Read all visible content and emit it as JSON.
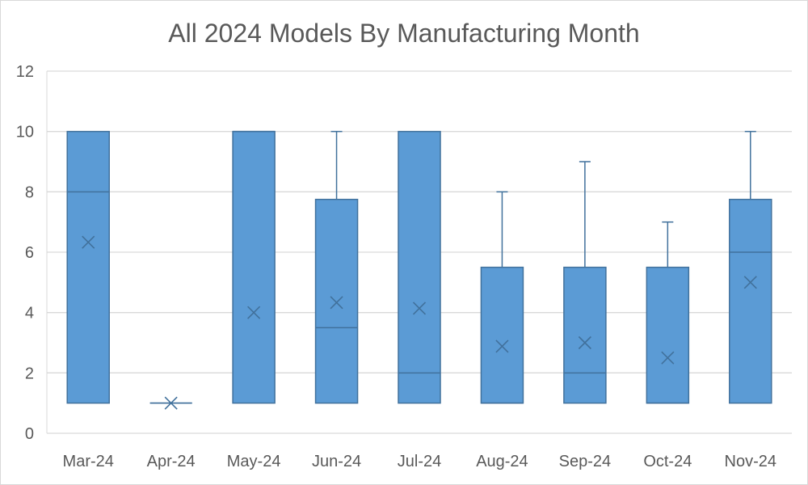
{
  "chart_data": {
    "type": "box",
    "title": "All 2024 Models By Manufacturing Month",
    "xlabel": "",
    "ylabel": "",
    "ylim": [
      0,
      12
    ],
    "yticks": [
      0,
      2,
      4,
      6,
      8,
      10,
      12
    ],
    "grid": true,
    "legend": "none",
    "colors": {
      "box_fill": "#5b9bd5",
      "box_stroke": "#41719c",
      "grid": "#d9d9d9",
      "text": "#595959"
    },
    "categories": [
      "Mar-24",
      "Apr-24",
      "May-24",
      "Jun-24",
      "Jul-24",
      "Aug-24",
      "Sep-24",
      "Oct-24",
      "Nov-24"
    ],
    "boxes": [
      {
        "category": "Mar-24",
        "min": 1,
        "q1": 1,
        "median": 8,
        "q3": 10,
        "max": 10,
        "mean": 6.33
      },
      {
        "category": "Apr-24",
        "min": 1,
        "q1": 1,
        "median": 1,
        "q3": 1,
        "max": 1,
        "mean": 1
      },
      {
        "category": "May-24",
        "min": 1,
        "q1": 1,
        "median": 10,
        "q3": 10,
        "max": 10,
        "mean": 4
      },
      {
        "category": "Jun-24",
        "min": 1,
        "q1": 1,
        "median": 3.5,
        "q3": 7.75,
        "max": 10,
        "mean": 4.33
      },
      {
        "category": "Jul-24",
        "min": 1,
        "q1": 1,
        "median": 2,
        "q3": 10,
        "max": 10,
        "mean": 4.14
      },
      {
        "category": "Aug-24",
        "min": 1,
        "q1": 1,
        "median": 1,
        "q3": 5.5,
        "max": 8,
        "mean": 2.88
      },
      {
        "category": "Sep-24",
        "min": 1,
        "q1": 1,
        "median": 2,
        "q3": 5.5,
        "max": 9,
        "mean": 3
      },
      {
        "category": "Oct-24",
        "min": 1,
        "q1": 1,
        "median": 1,
        "q3": 5.5,
        "max": 7,
        "mean": 2.5
      },
      {
        "category": "Nov-24",
        "min": 1,
        "q1": 1,
        "median": 6,
        "q3": 7.75,
        "max": 10,
        "mean": 5
      }
    ]
  }
}
